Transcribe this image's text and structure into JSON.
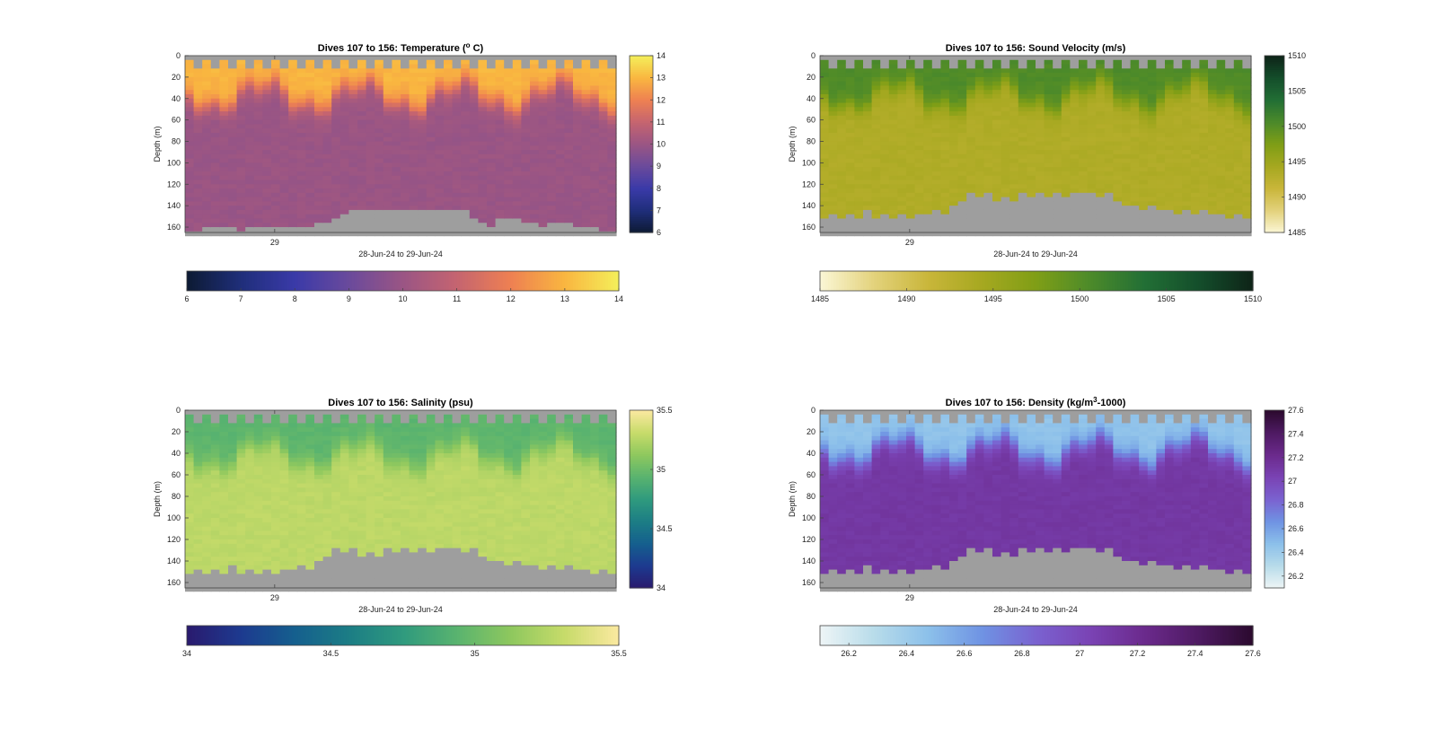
{
  "chart_data": [
    {
      "type": "heatmap",
      "variable": "temperature",
      "title": "Dives 107 to 156: Temperature (",
      "title_sup": "o",
      "title_end": " C)",
      "xlabel": "28-Jun-24 to 29-Jun-24",
      "ylabel": "Depth (m)",
      "x_ticks": [
        "29"
      ],
      "ylim": [
        0,
        165
      ],
      "y_ticks": [
        0,
        20,
        40,
        60,
        80,
        100,
        120,
        140,
        160
      ],
      "colorbar_range": [
        6,
        14
      ],
      "colorbar_ticks": [
        6,
        7,
        8,
        9,
        10,
        11,
        12,
        13,
        14
      ],
      "horizontal_colorbar_ticks": [
        6,
        7,
        8,
        9,
        10,
        11,
        12,
        13,
        14
      ],
      "colormap": [
        "#0d1a33",
        "#1f2e7a",
        "#3a3aa8",
        "#6a4a9c",
        "#9a5584",
        "#c56470",
        "#ee8052",
        "#f9b640",
        "#f4ef5a"
      ],
      "profile": {
        "surface_value": 13.0,
        "deep_value": 10.0,
        "mixed_layer_depth_m": 38
      },
      "n_dives": 50,
      "bottom_depth_m": [
        162,
        162,
        160,
        160,
        158,
        160,
        162,
        160,
        160,
        160,
        160,
        158,
        158,
        160,
        160,
        156,
        154,
        150,
        146,
        143,
        142,
        144,
        144,
        144,
        143,
        142,
        142,
        142,
        142,
        142,
        142,
        144,
        144,
        150,
        155,
        157,
        150,
        150,
        152,
        154,
        156,
        157,
        156,
        155,
        156,
        158,
        158,
        160,
        162,
        162
      ]
    },
    {
      "type": "heatmap",
      "variable": "sound_velocity",
      "title": "Dives 107 to 156: Sound Velocity (m/s)",
      "xlabel": "28-Jun-24 to 29-Jun-24",
      "ylabel": "Depth (m)",
      "x_ticks": [
        "29"
      ],
      "ylim": [
        0,
        165
      ],
      "y_ticks": [
        0,
        20,
        40,
        60,
        80,
        100,
        120,
        140,
        160
      ],
      "colorbar_range": [
        1485,
        1510
      ],
      "colorbar_ticks": [
        1485,
        1490,
        1495,
        1500,
        1505,
        1510
      ],
      "horizontal_colorbar_ticks": [
        1485,
        1490,
        1495,
        1500,
        1505,
        1510
      ],
      "colormap": [
        "#fbf7d6",
        "#e3d27c",
        "#c9b63a",
        "#a6a820",
        "#7f9e16",
        "#4c8a2a",
        "#226f35",
        "#144e2b",
        "#0e2418"
      ],
      "profile": {
        "surface_value": 1500.5,
        "deep_value": 1493.5,
        "mixed_layer_depth_m": 38
      },
      "n_dives": 50,
      "bottom_depth_m": [
        150,
        146,
        150,
        146,
        150,
        144,
        150,
        146,
        150,
        146,
        150,
        146,
        148,
        144,
        146,
        140,
        134,
        126,
        132,
        128,
        134,
        130,
        134,
        128,
        132,
        126,
        130,
        126,
        130,
        126,
        128,
        126,
        130,
        128,
        134,
        140,
        138,
        142,
        140,
        144,
        142,
        146,
        144,
        146,
        144,
        148,
        146,
        150,
        148,
        152
      ]
    },
    {
      "type": "heatmap",
      "variable": "salinity",
      "title": "Dives 107 to 156: Salinity (psu)",
      "xlabel": "28-Jun-24 to 29-Jun-24",
      "ylabel": "Depth (m)",
      "x_ticks": [
        "29"
      ],
      "ylim": [
        0,
        165
      ],
      "y_ticks": [
        0,
        20,
        40,
        60,
        80,
        100,
        120,
        140,
        160
      ],
      "colorbar_range": [
        34,
        35.5
      ],
      "colorbar_ticks": [
        34,
        34.5,
        35,
        35.5
      ],
      "horizontal_colorbar_ticks": [
        34,
        34.5,
        35,
        35.5
      ],
      "colormap": [
        "#2a1a6e",
        "#1d3a8f",
        "#155f8e",
        "#1c7d85",
        "#2f9a7e",
        "#59b36f",
        "#8ec85e",
        "#c7db6a",
        "#fbe9a0"
      ],
      "profile": {
        "surface_value": 34.95,
        "deep_value": 35.28,
        "mixed_layer_depth_m": 42
      },
      "n_dives": 50,
      "bottom_depth_m": [
        150,
        146,
        150,
        146,
        150,
        144,
        150,
        146,
        150,
        146,
        150,
        146,
        148,
        144,
        146,
        140,
        134,
        126,
        132,
        128,
        134,
        130,
        134,
        128,
        132,
        126,
        130,
        126,
        130,
        126,
        128,
        126,
        130,
        128,
        134,
        140,
        138,
        142,
        140,
        144,
        142,
        146,
        144,
        146,
        144,
        148,
        146,
        150,
        148,
        152
      ]
    },
    {
      "type": "heatmap",
      "variable": "density",
      "title": "Dives 107 to 156: Density (kg/m",
      "title_sup": "3",
      "title_end": "-1000)",
      "xlabel": "28-Jun-24 to 29-Jun-24",
      "ylabel": "Depth (m)",
      "x_ticks": [
        "29"
      ],
      "ylim": [
        0,
        165
      ],
      "y_ticks": [
        0,
        20,
        40,
        60,
        80,
        100,
        120,
        140,
        160
      ],
      "colorbar_range": [
        26.1,
        27.6
      ],
      "colorbar_ticks": [
        26.2,
        26.4,
        26.6,
        26.8,
        27,
        27.2,
        27.4,
        27.6
      ],
      "horizontal_colorbar_ticks": [
        26.2,
        26.4,
        26.6,
        26.8,
        27,
        27.2,
        27.4,
        27.6
      ],
      "colormap": [
        "#eef5f6",
        "#b8dcea",
        "#8cc0ea",
        "#6f93e3",
        "#7a62d0",
        "#7a43b4",
        "#6b2a8c",
        "#4e1a62",
        "#2b0a2e"
      ],
      "profile": {
        "surface_value": 26.45,
        "deep_value": 27.12,
        "mixed_layer_depth_m": 38
      },
      "n_dives": 50,
      "bottom_depth_m": [
        150,
        146,
        150,
        146,
        150,
        144,
        150,
        146,
        150,
        146,
        150,
        146,
        148,
        144,
        146,
        140,
        134,
        126,
        132,
        128,
        134,
        130,
        134,
        128,
        132,
        126,
        130,
        126,
        130,
        126,
        128,
        126,
        130,
        128,
        134,
        140,
        138,
        142,
        140,
        144,
        142,
        146,
        144,
        146,
        144,
        148,
        146,
        150,
        148,
        152
      ]
    }
  ]
}
